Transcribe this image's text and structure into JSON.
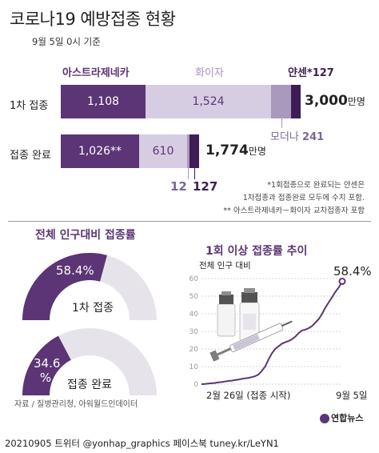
{
  "header": {
    "title": "코로나19 예방접종 현황",
    "date": "9월 5일 0시 기준"
  },
  "chart_data": [
    {
      "type": "bar",
      "unit": "만명",
      "vendors": {
        "az": "아스트라제네카",
        "pfizer": "화이자",
        "janssen": "얀센*",
        "moderna": "모더나"
      },
      "categories": [
        "1차 접종",
        "접종 완료"
      ],
      "series": [
        {
          "name": "아스트라제네카",
          "values": [
            1108,
            1026
          ],
          "labels": [
            "1,108",
            "1,026**"
          ]
        },
        {
          "name": "화이자",
          "values": [
            1524,
            610
          ],
          "labels": [
            "1,524",
            "610"
          ]
        },
        {
          "name": "모더나",
          "values": [
            241,
            12
          ],
          "labels": [
            "241",
            "12"
          ]
        },
        {
          "name": "얀센*",
          "values": [
            127,
            127
          ],
          "labels": [
            "127",
            "127"
          ]
        }
      ],
      "totals": [
        "3,000",
        "1,774"
      ],
      "notes": [
        "*1회접종으로 완료되는 얀센은",
        "1차접종과 접종완료 모두에 수치 포함.",
        "** 아스트라제네카－화이자 교차접종자 포함"
      ]
    },
    {
      "type": "pie",
      "title": "전체 인구대비 접종률",
      "gauges": [
        {
          "label": "1차 접종",
          "value": 58.4,
          "value_label": "58.4%"
        },
        {
          "label": "접종 완료",
          "value": 34.6,
          "value_label": "34.6 %"
        }
      ]
    },
    {
      "type": "line",
      "title": "1회 이상  접종률 추이",
      "ylabel": "전체 인구 대비",
      "ylim": [
        0,
        60
      ],
      "yticks": [
        "0",
        "10",
        "20",
        "30",
        "40",
        "50",
        "60"
      ],
      "xlabels": [
        "2월 26일 (접종 시작)",
        "9월 5일"
      ],
      "end_label": "58.4%",
      "series": [
        {
          "values": [
            0,
            0.1,
            0.3,
            0.5,
            0.7,
            1.0,
            1.2,
            1.5,
            1.8,
            2.0,
            2.3,
            2.6,
            3.0,
            3.3,
            3.6,
            4.0,
            4.5,
            5.5,
            7.5,
            10.0,
            14.0,
            17.5,
            20.0,
            21.5,
            23.0,
            23.8,
            24.5,
            25.5,
            27.0,
            29.0,
            30.5,
            31.0,
            31.8,
            33.0,
            35.0,
            37.0,
            40.0,
            43.5,
            46.5,
            49.5,
            52.5,
            55.0,
            58.4
          ]
        }
      ]
    }
  ],
  "source": "자료 / 질병관리청, 아워월드인데이터",
  "logo": "연합뉴스",
  "footer": "20210905  트위터 @yonhap_graphics  페이스북 tuney.kr/LeYN1",
  "colors": {
    "dark_purple": "#5b3575",
    "light_purple": "#d7cde3",
    "mid_purple": "#a999bd",
    "accent": "#3e1d57",
    "gauge_bg": "#e7e3ea"
  }
}
